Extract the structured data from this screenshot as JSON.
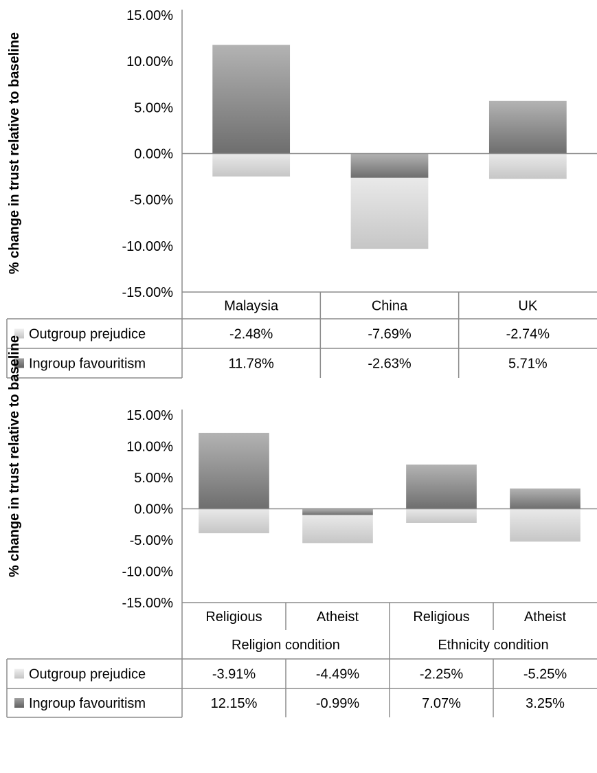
{
  "chart_data": [
    {
      "type": "bar",
      "stacked": true,
      "ylabel": "% change in trust relative to baseline",
      "ylim": [
        -15,
        15
      ],
      "yticks": [
        "15.00%",
        "10.00%",
        "5.00%",
        "0.00%",
        "-5.00%",
        "-10.00%",
        "-15.00%"
      ],
      "categories": [
        "Malaysia",
        "China",
        "UK"
      ],
      "series": [
        {
          "name": "Outgroup prejudice",
          "values": [
            -2.48,
            -7.69,
            -2.74
          ],
          "labels": [
            "-2.48%",
            "-7.69%",
            "-2.74%"
          ],
          "color": "#d4d4d4"
        },
        {
          "name": "Ingroup favouritism",
          "values": [
            11.78,
            -2.63,
            5.71
          ],
          "labels": [
            "11.78%",
            "-2.63%",
            "5.71%"
          ],
          "color": "#7a7a7a"
        }
      ]
    },
    {
      "type": "bar",
      "stacked": true,
      "ylabel": "% change in trust relative to baseline",
      "ylim": [
        -15,
        15
      ],
      "yticks": [
        "15.00%",
        "10.00%",
        "5.00%",
        "0.00%",
        "-5.00%",
        "-10.00%",
        "-15.00%"
      ],
      "categories": [
        "Religious",
        "Atheist",
        "Religious",
        "Atheist"
      ],
      "groups": [
        {
          "label": "Religion condition",
          "span": 2
        },
        {
          "label": "Ethnicity condition",
          "span": 2
        }
      ],
      "series": [
        {
          "name": "Outgroup prejudice",
          "values": [
            -3.91,
            -4.49,
            -2.25,
            -5.25
          ],
          "labels": [
            "-3.91%",
            "-4.49%",
            "-2.25%",
            "-5.25%"
          ],
          "color": "#d4d4d4"
        },
        {
          "name": "Ingroup favouritism",
          "values": [
            12.15,
            -0.99,
            7.07,
            3.25
          ],
          "labels": [
            "12.15%",
            "-0.99%",
            "7.07%",
            "3.25%"
          ],
          "color": "#7a7a7a"
        }
      ]
    }
  ]
}
